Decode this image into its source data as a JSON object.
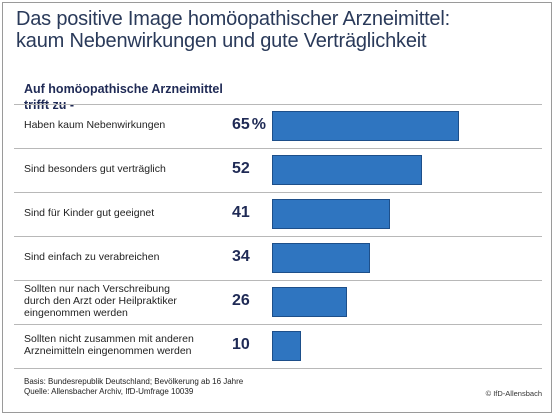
{
  "header": {
    "title_line1": "Das positive Image homöopathischer Arzneimittel:",
    "title_line2": "kaum Nebenwirkungen und gute Verträglichkeit"
  },
  "chart_data": {
    "type": "bar",
    "orientation": "horizontal",
    "title": "Das positive Image homöopathischer Arzneimittel: kaum Nebenwirkungen und gute Verträglichkeit",
    "subtitle_line1": "Auf homöopathische Arzneimittel",
    "subtitle_line2": "trifft zu -",
    "unit": "%",
    "xlim": [
      0,
      100
    ],
    "grid": false,
    "legend": "none",
    "categories": [
      [
        "Haben kaum Nebenwirkungen"
      ],
      [
        "Sind besonders gut verträglich"
      ],
      [
        "Sind für Kinder gut geeignet"
      ],
      [
        "Sind einfach zu verabreichen"
      ],
      [
        "Sollten nur nach Verschreibung",
        "durch den Arzt oder Heilpraktiker",
        "eingenommen werden"
      ],
      [
        "Sollten nicht zusammen mit anderen",
        "Arzneimitteln eingenommen werden"
      ]
    ],
    "values": [
      65,
      52,
      41,
      34,
      26,
      10
    ],
    "value_labels": [
      "65",
      "52",
      "41",
      "34",
      "26",
      "10"
    ],
    "bar_color": "#2f75c0"
  },
  "footer": {
    "basis": "Basis: Bundesrepublik Deutschland; Bevölkerung ab 16 Jahre",
    "source": "Quelle: Allensbacher Archiv, IfD-Umfrage 10039",
    "copyright": "© IfD-Allensbach"
  }
}
